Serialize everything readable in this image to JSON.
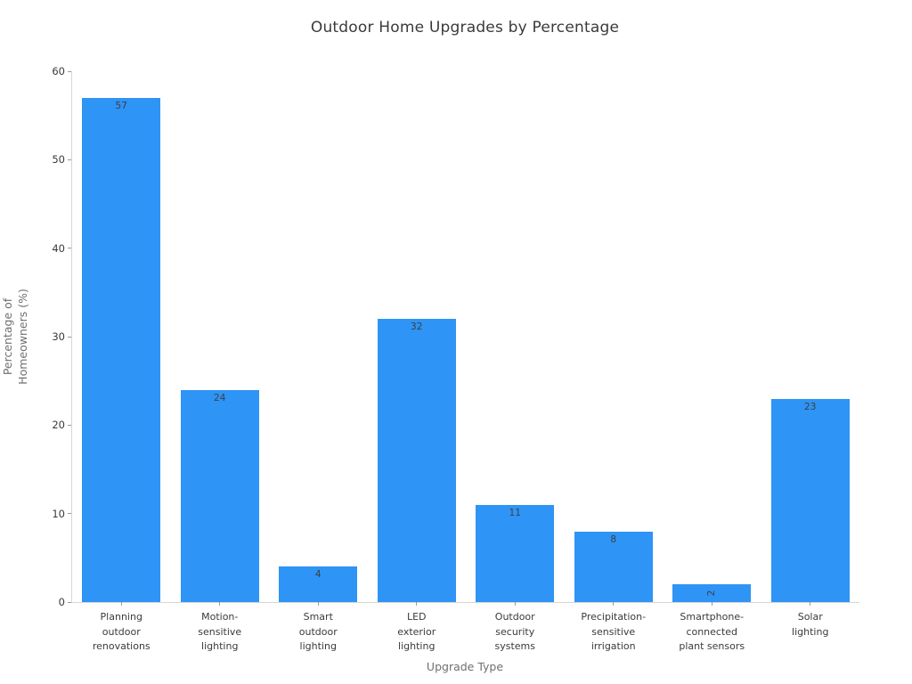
{
  "chart_data": {
    "type": "bar",
    "title": "Outdoor Home Upgrades by Percentage",
    "xlabel": "Upgrade Type",
    "ylabel": "Percentage of\nHomeowners (%)",
    "categories": [
      "Planning\noutdoor\nrenovations",
      "Motion-\nsensitive\nlighting",
      "Smart\noutdoor\nlighting",
      "LED\nexterior\nlighting",
      "Outdoor\nsecurity\nsystems",
      "Precipitation-\nsensitive\nirrigation",
      "Smartphone-\nconnected\nplant sensors",
      "Solar\nlighting"
    ],
    "values": [
      57,
      24,
      4,
      32,
      11,
      8,
      2,
      23
    ],
    "value_labels": [
      "57",
      "24",
      "4",
      "32",
      "11",
      "8",
      "2",
      "23"
    ],
    "rotated_value_labels": [
      false,
      false,
      false,
      false,
      false,
      false,
      true,
      false
    ],
    "ylim": [
      0,
      60
    ],
    "yticks": [
      0,
      10,
      20,
      30,
      40,
      50,
      60
    ],
    "grid": false,
    "legend": null,
    "bar_color": "#2e94f5"
  },
  "colors": {
    "bar": "#2e94f5",
    "title_text": "#3a3a3a",
    "tick_text": "#3a3a3a",
    "axis_label_text": "#6f6f6f",
    "spine": "#d6d6d6",
    "background": "#ffffff"
  }
}
